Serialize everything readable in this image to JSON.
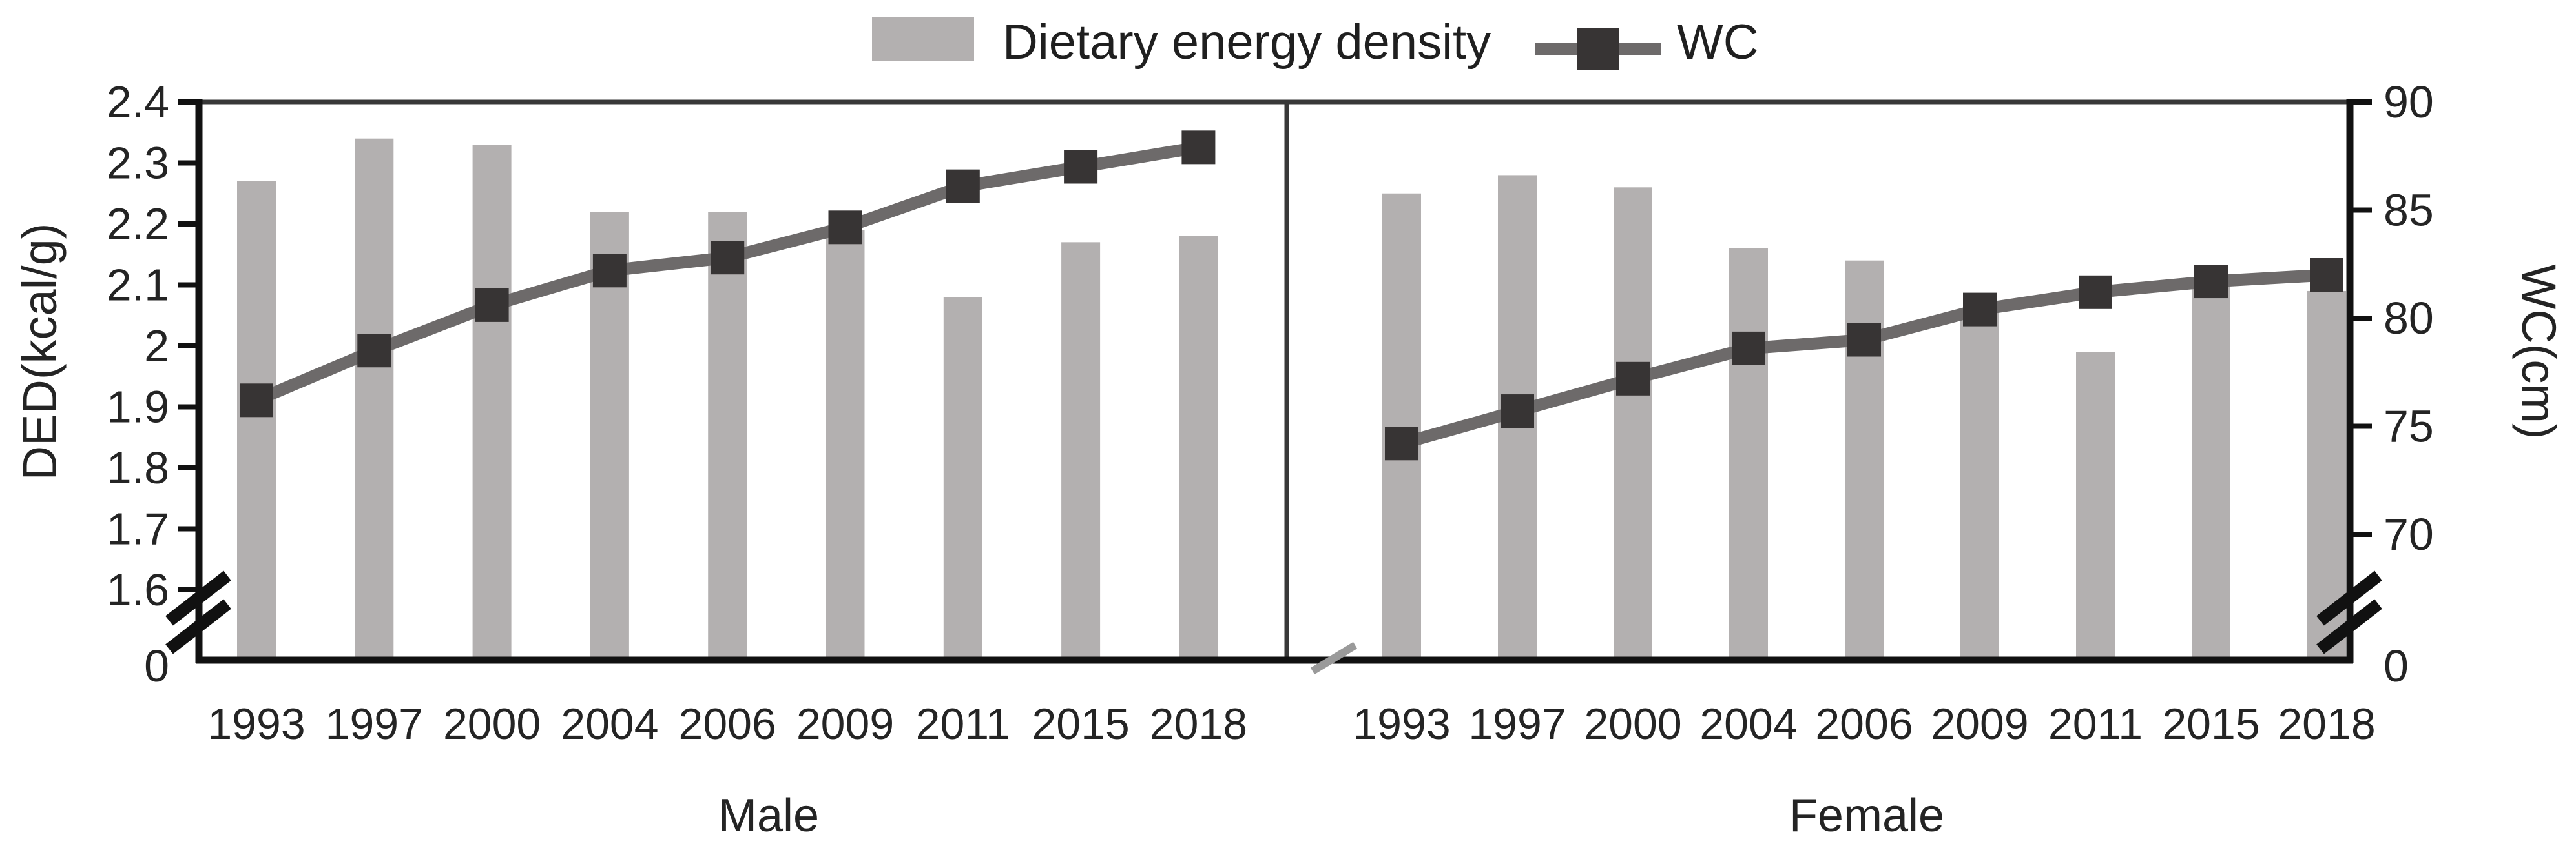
{
  "chart_data": {
    "type": "bar+line dual-axis combo",
    "title": "",
    "legend_position": "top",
    "grid": false,
    "legend": {
      "bar_label": "Dietary energy density",
      "line_label": "WC"
    },
    "categories": [
      "1993",
      "1997",
      "2000",
      "2004",
      "2006",
      "2009",
      "2011",
      "2015",
      "2018"
    ],
    "panels": [
      {
        "label": "Male",
        "ded_values": [
          2.27,
          2.34,
          2.33,
          2.22,
          2.22,
          2.19,
          2.08,
          2.17,
          2.18
        ],
        "wc_values": [
          76.2,
          78.5,
          80.6,
          82.2,
          82.8,
          84.2,
          86.1,
          87.0,
          87.9
        ]
      },
      {
        "label": "Female",
        "ded_values": [
          2.25,
          2.28,
          2.26,
          2.16,
          2.14,
          2.06,
          1.99,
          2.1,
          2.09
        ],
        "wc_values": [
          74.2,
          75.7,
          77.2,
          78.6,
          79.0,
          80.4,
          81.2,
          81.7,
          82.0
        ]
      }
    ],
    "left_axis": {
      "title": "DED(kcal/g)",
      "tick_labels": [
        "2.4",
        "2.3",
        "2.2",
        "2.1",
        "2",
        "1.9",
        "1.8",
        "1.7",
        "1.6"
      ],
      "tick_values": [
        2.4,
        2.3,
        2.2,
        2.1,
        2.0,
        1.9,
        1.8,
        1.7,
        1.6
      ],
      "zero_label": "0",
      "axis_break": true,
      "range": [
        1.6,
        2.4
      ]
    },
    "right_axis": {
      "title": "WC(cm)",
      "tick_labels": [
        "90",
        "85",
        "80",
        "75",
        "70"
      ],
      "tick_values": [
        90,
        85,
        80,
        75,
        70
      ],
      "zero_label": "0",
      "axis_break": true,
      "range": [
        70,
        90
      ]
    },
    "colors": {
      "bar": "#b3b0b0",
      "line": "#6d6a6a",
      "marker": "#373434",
      "axis": "#111111",
      "panel_border": "#383838",
      "divider_break": "#9a9a9a",
      "text": "#242424"
    }
  }
}
